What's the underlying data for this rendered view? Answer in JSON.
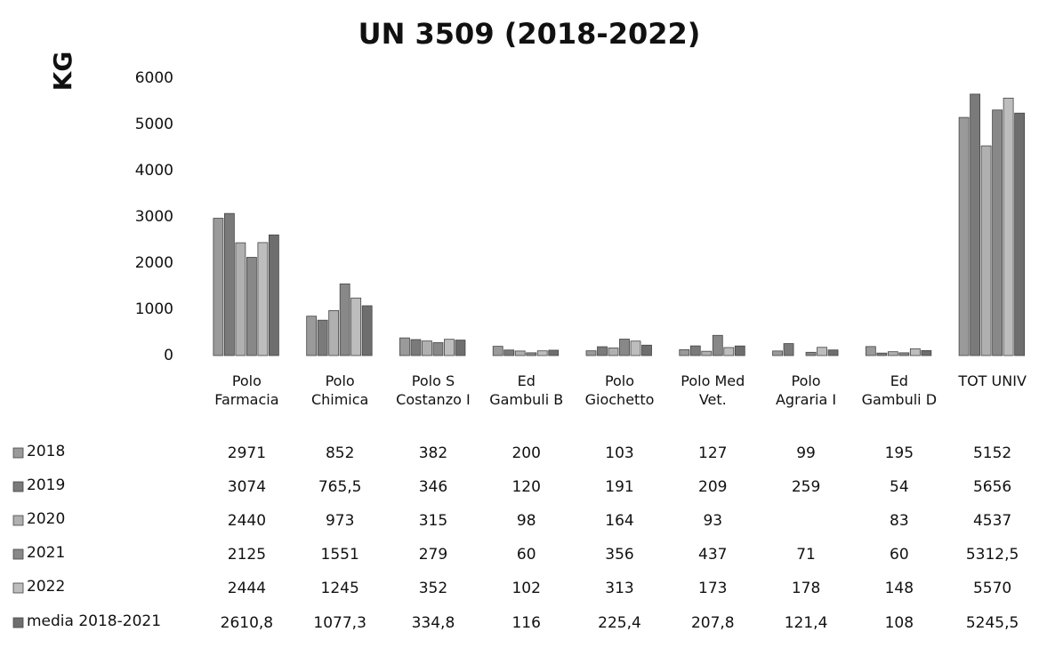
{
  "chart_data": {
    "type": "bar",
    "title": "UN 3509 (2018-2022)",
    "y_label": "KG",
    "categories": [
      "Polo Farmacia",
      "Polo Chimica",
      "Polo S Costanzo I",
      "Ed Gambuli B",
      "Polo Giochetto",
      "Polo Med Vet.",
      "Polo Agraria I",
      "Ed Gambuli D",
      "TOT UNIV"
    ],
    "series": [
      {
        "name": "2018",
        "color": "#9a9a9a",
        "values": [
          2971,
          852,
          382,
          200,
          103,
          127,
          99,
          195,
          5152
        ],
        "value_labels": [
          "2971",
          "852",
          "382",
          "200",
          "103",
          "127",
          "99",
          "195",
          "5152"
        ]
      },
      {
        "name": "2019",
        "color": "#7a7a7a",
        "values": [
          3074,
          765.5,
          346,
          120,
          191,
          209,
          259,
          54,
          5656
        ],
        "value_labels": [
          "3074",
          "765,5",
          "346",
          "120",
          "191",
          "209",
          "259",
          "54",
          "5656"
        ]
      },
      {
        "name": "2020",
        "color": "#b0b0b0",
        "values": [
          2440,
          973,
          315,
          98,
          164,
          93,
          null,
          83,
          4537
        ],
        "value_labels": [
          "2440",
          "973",
          "315",
          "98",
          "164",
          "93",
          null,
          "83",
          "4537"
        ]
      },
      {
        "name": "2021",
        "color": "#888888",
        "values": [
          2125,
          1551,
          279,
          60,
          356,
          437,
          71,
          60,
          5312.5
        ],
        "value_labels": [
          "2125",
          "1551",
          "279",
          "60",
          "356",
          "437",
          "71",
          "60",
          "5312,5"
        ]
      },
      {
        "name": "2022",
        "color": "#bdbdbd",
        "values": [
          2444,
          1245,
          352,
          102,
          313,
          173,
          178,
          148,
          5570
        ],
        "value_labels": [
          "2444",
          "1245",
          "352",
          "102",
          "313",
          "173",
          "178",
          "148",
          "5570"
        ]
      },
      {
        "name": "media 2018-2021",
        "color": "#6e6e6e",
        "values": [
          2610.8,
          1077.3,
          334.8,
          116,
          225.4,
          207.8,
          121.4,
          108,
          5245.5
        ],
        "value_labels": [
          "2610,8",
          "1077,3",
          "334,8",
          "116",
          "225,4",
          "207,8",
          "121,4",
          "108",
          "5245,5"
        ]
      }
    ],
    "ylim": [
      0,
      6000
    ],
    "yticks": [
      0,
      1000,
      2000,
      3000,
      4000,
      5000,
      6000
    ],
    "grid": false
  }
}
